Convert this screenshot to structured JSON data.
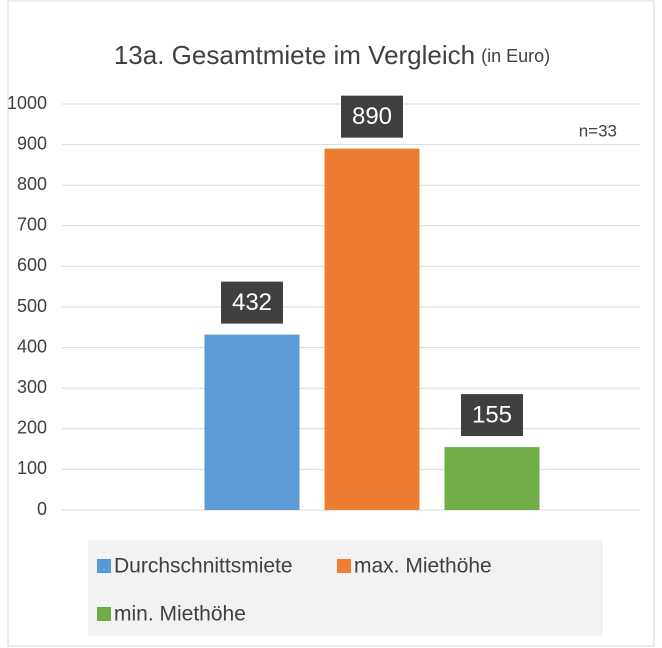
{
  "chart_data": {
    "type": "bar",
    "title": "13a. Gesamtmiete im Vergleich",
    "subtitle": "(in Euro)",
    "annotation": "n=33",
    "categories": [
      null
    ],
    "series": [
      {
        "name": "Durchschnittsmiete",
        "color": "#5b9bd5",
        "values": [
          432
        ]
      },
      {
        "name": "max. Miethöhe",
        "color": "#ed7d31",
        "values": [
          890
        ]
      },
      {
        "name": "min. Miethöhe",
        "color": "#70ad47",
        "values": [
          155
        ]
      }
    ],
    "ylim": [
      0,
      1000
    ],
    "yticks": [
      0,
      100,
      200,
      300,
      400,
      500,
      600,
      700,
      800,
      900,
      1000
    ],
    "grid": true,
    "legend": "bottom",
    "data_labels": true
  }
}
